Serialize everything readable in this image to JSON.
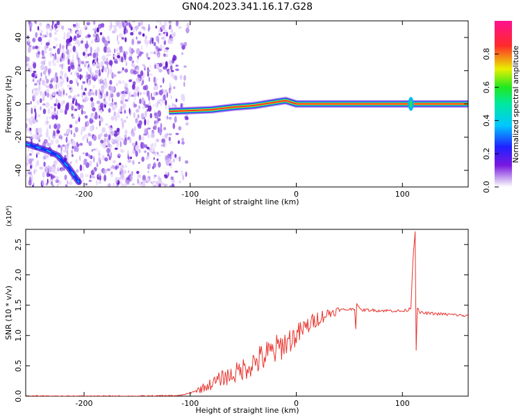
{
  "title": "GN04.2023.341.16.17.G28",
  "chart_data": [
    {
      "type": "heatmap",
      "xlabel": "Height of straight line (km)",
      "ylabel": "Frequency (Hz)",
      "xlim": [
        -255,
        162
      ],
      "ylim": [
        -50,
        50
      ],
      "x_ticks": [
        -200,
        -100,
        0,
        100
      ],
      "y_ticks": [
        -40,
        -20,
        0,
        20,
        40
      ],
      "x_tick_labels": [
        "-200",
        "-100",
        "0",
        "100"
      ],
      "y_tick_labels": [
        "-40",
        "-20",
        "0",
        "20",
        "40"
      ],
      "colorbar": {
        "label": "Normalized spectral amplitude",
        "range": [
          0,
          1
        ],
        "ticks": [
          0.0,
          0.2,
          0.4,
          0.6,
          0.8
        ],
        "tick_labels": [
          "0.0",
          "0.2",
          "0.4",
          "0.6",
          "0.8"
        ],
        "colormap": "rainbow (white → purple → blue → cyan → green → yellow → red → magenta)"
      },
      "ridge": {
        "name": "main ridge",
        "x": [
          -120,
          -100,
          -80,
          -60,
          -40,
          -20,
          -10,
          0,
          25,
          50,
          100,
          108,
          162
        ],
        "y": [
          -4.5,
          -4,
          -3.5,
          -2,
          -1,
          1,
          2,
          0,
          0,
          0,
          0,
          0,
          0
        ]
      },
      "secondary_trace": {
        "x": [
          -255,
          -245,
          -235,
          -225,
          -215,
          -205
        ],
        "y": [
          -24,
          -26,
          -28,
          -31,
          -38,
          -47
        ]
      },
      "spike_x": 108
    },
    {
      "type": "line",
      "xlabel": "Height of straight line (km)",
      "ylabel": "SNR (10 * v/v)",
      "y_multiplier": "(x10⁴)",
      "xlim": [
        -255,
        162
      ],
      "ylim": [
        0,
        2.75
      ],
      "x_ticks": [
        -200,
        -100,
        0,
        100
      ],
      "y_ticks": [
        0,
        0.5,
        1.0,
        1.5,
        2.0,
        2.5
      ],
      "x_tick_labels": [
        "-200",
        "-100",
        "0",
        "100"
      ],
      "y_tick_labels": [
        "0.0",
        "0.5",
        "1.0",
        "1.5",
        "2.0",
        "2.5"
      ],
      "color": "#e8332d",
      "series": [
        {
          "x": [
            -255,
            -200,
            -150,
            -110,
            -100,
            -90,
            -80,
            -70,
            -60,
            -50,
            -40,
            -30,
            -20,
            -10,
            0,
            10,
            20,
            30,
            40,
            50,
            55,
            56,
            57,
            60,
            70,
            80,
            90,
            100,
            105,
            108,
            110,
            112,
            113,
            114,
            116,
            120,
            130,
            140,
            150,
            162
          ],
          "y": [
            0.0,
            0.0,
            0.0,
            0.01,
            0.05,
            0.12,
            0.2,
            0.3,
            0.35,
            0.45,
            0.55,
            0.65,
            0.75,
            0.88,
            1.0,
            1.15,
            1.28,
            1.36,
            1.42,
            1.43,
            1.45,
            1.1,
            1.55,
            1.42,
            1.42,
            1.41,
            1.41,
            1.4,
            1.42,
            1.46,
            2.28,
            2.72,
            0.78,
            1.45,
            1.38,
            1.37,
            1.36,
            1.35,
            1.34,
            1.32
          ]
        }
      ]
    }
  ]
}
